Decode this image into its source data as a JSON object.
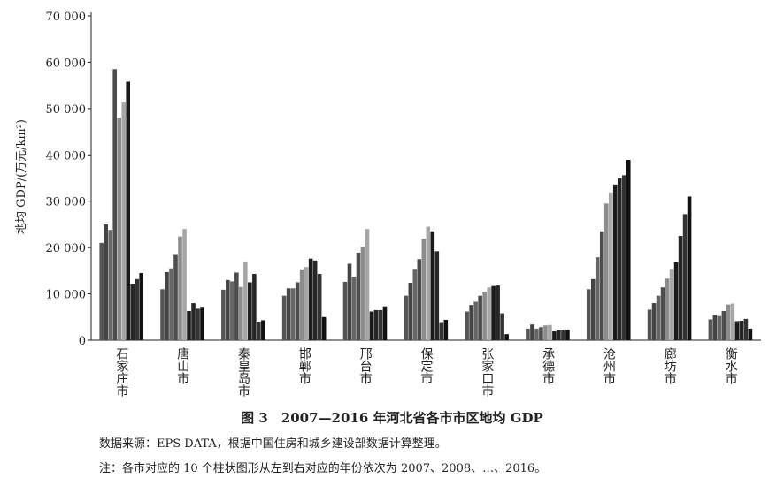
{
  "chart_data": {
    "type": "bar",
    "ylabel": "地均 GDP/(万元/km²)",
    "caption": "图 3　2007—2016 年河北省各市市区地均 GDP",
    "source": "数据来源：EPS DATA，根据中国住房和城乡建设部数据计算整理。",
    "note": "注：各市对应的 10 个柱状图形从左到右对应的年份依次为 2007、2008、…、2016。",
    "categories": [
      "石家庄市",
      "唐山市",
      "秦皇岛市",
      "邯郸市",
      "邢台市",
      "保定市",
      "张家口市",
      "承德市",
      "沧州市",
      "廊坊市",
      "衡水市"
    ],
    "series": [
      {
        "color": "#555555",
        "values": [
          21000,
          11000,
          10900,
          9600,
          12600,
          9600,
          6200,
          2500,
          11000,
          6600,
          4500
        ]
      },
      {
        "color": "#444444",
        "values": [
          25000,
          14700,
          13000,
          11200,
          16500,
          12400,
          7600,
          3400,
          13200,
          8000,
          5400
        ]
      },
      {
        "color": "#666666",
        "values": [
          23800,
          15500,
          12700,
          11200,
          13700,
          15400,
          8300,
          2500,
          17900,
          9600,
          5200
        ]
      },
      {
        "color": "#4d4d4d",
        "values": [
          58500,
          18400,
          14600,
          12500,
          18900,
          17500,
          9600,
          2800,
          23500,
          11400,
          6300
        ]
      },
      {
        "color": "#8c8c8c",
        "values": [
          48000,
          22400,
          11500,
          15300,
          20200,
          21900,
          10500,
          3200,
          29500,
          13300,
          7700
        ]
      },
      {
        "color": "#a6a6a6",
        "values": [
          51500,
          24000,
          17000,
          15800,
          24000,
          24500,
          11400,
          3300,
          31900,
          15400,
          7900
        ]
      },
      {
        "color": "#1a1a1a",
        "values": [
          55800,
          6300,
          12500,
          17600,
          6200,
          23500,
          11700,
          1900,
          33600,
          16800,
          4100
        ]
      },
      {
        "color": "#262626",
        "values": [
          12200,
          8000,
          14300,
          17200,
          6500,
          19200,
          11800,
          2100,
          35000,
          22500,
          4200
        ]
      },
      {
        "color": "#333333",
        "values": [
          13200,
          6800,
          4000,
          14300,
          6500,
          3900,
          5800,
          2100,
          35600,
          27200,
          4600
        ]
      },
      {
        "color": "#111111",
        "values": [
          14500,
          7200,
          4300,
          5000,
          7300,
          4400,
          1300,
          2300,
          38900,
          31000,
          2500
        ]
      }
    ],
    "ylim": [
      0,
      70000
    ],
    "yticks": [
      0,
      {
        "value": 10000,
        "label": "10 000"
      },
      {
        "value": 20000,
        "label": "20 000"
      },
      {
        "value": 30000,
        "label": "30 000"
      },
      {
        "value": 40000,
        "label": "40 000"
      },
      {
        "value": 50000,
        "label": "50 000"
      },
      {
        "value": 60000,
        "label": "60 000"
      },
      {
        "value": 70000,
        "label": "70 000"
      }
    ]
  }
}
